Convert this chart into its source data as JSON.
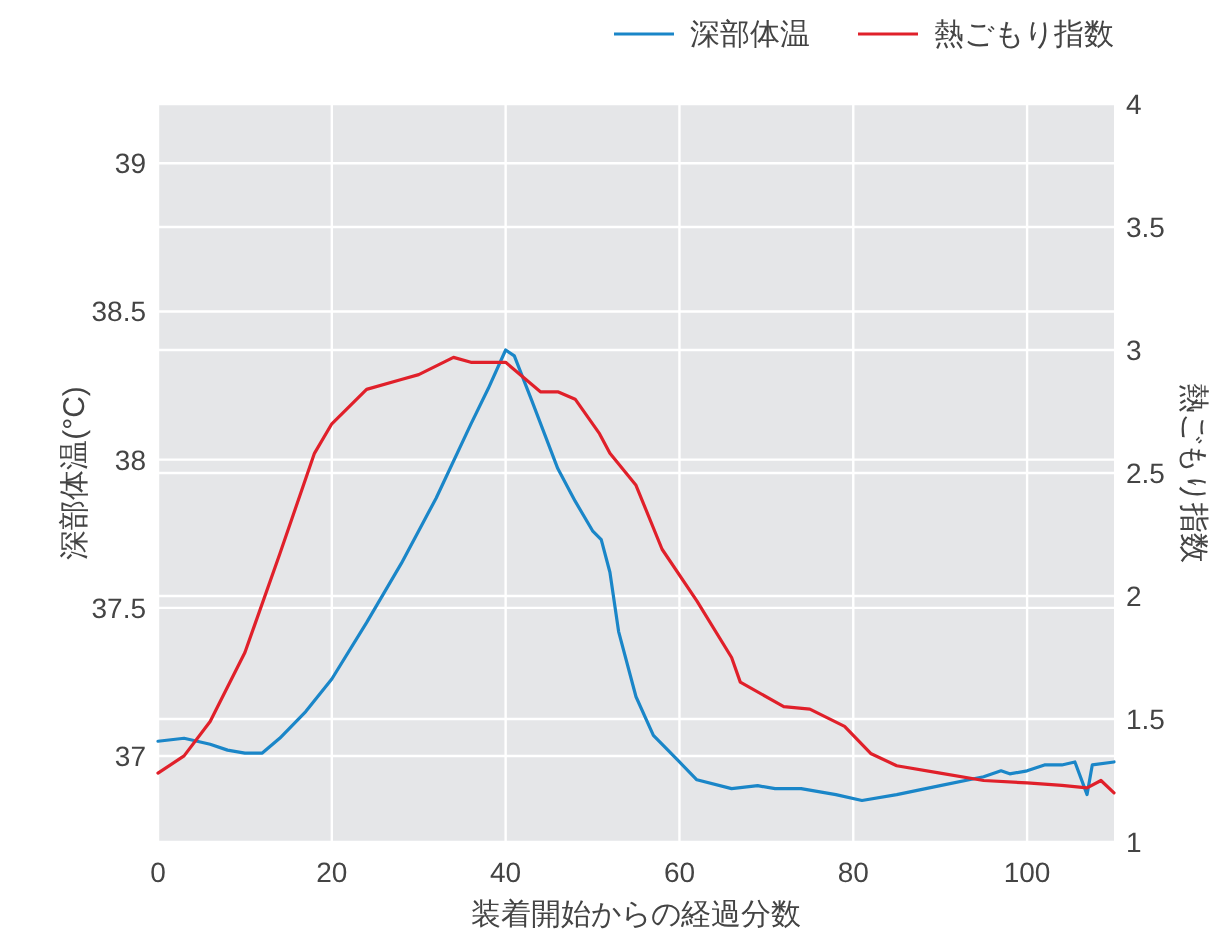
{
  "chart_data": {
    "type": "line",
    "xlabel": "装着開始からの経過分数",
    "ylabel": "深部体温(°C)",
    "y2label": "熱ごもり指数",
    "xlim": [
      0,
      110
    ],
    "xticks": [
      0,
      20,
      40,
      60,
      80,
      100
    ],
    "ylim": [
      36.71,
      39.2
    ],
    "yticks": [
      37,
      37.5,
      38,
      38.5,
      39
    ],
    "y2lim": [
      1,
      4
    ],
    "y2ticks": [
      1,
      1.5,
      2,
      2.5,
      3,
      3.5,
      4
    ],
    "grid": true,
    "legend": "top right",
    "marker": "none",
    "line_style": "solid",
    "series": [
      {
        "name": "深部体温",
        "color": "#1a86c8",
        "x": [
          0,
          3,
          6,
          8,
          10,
          12,
          14,
          17,
          20,
          24,
          28,
          32,
          36,
          38,
          40,
          41,
          43,
          46,
          48,
          50,
          51,
          52,
          53,
          55,
          57,
          60,
          62,
          66,
          69,
          71,
          74,
          78,
          81,
          85,
          90,
          95,
          97,
          98,
          100,
          102,
          104,
          105.5,
          106.9,
          107.5,
          110
        ],
        "values": [
          37.05,
          37.06,
          37.04,
          37.02,
          37.01,
          37.01,
          37.06,
          37.15,
          37.26,
          37.45,
          37.65,
          37.87,
          38.12,
          38.24,
          38.37,
          38.35,
          38.2,
          37.97,
          37.86,
          37.76,
          37.73,
          37.62,
          37.42,
          37.2,
          37.07,
          36.98,
          36.92,
          36.89,
          36.9,
          36.89,
          36.89,
          36.87,
          36.85,
          36.87,
          36.9,
          36.93,
          36.95,
          36.94,
          36.95,
          36.97,
          36.97,
          36.98,
          36.87,
          36.97,
          36.98
        ]
      },
      {
        "name": "熱ごもり指数",
        "color": "#e0202a",
        "axis": "y2",
        "x": [
          0,
          3,
          6,
          10,
          14,
          18,
          20,
          24,
          28,
          30,
          34,
          36,
          40,
          44,
          46,
          48,
          50.8,
          52,
          55,
          58,
          62,
          66,
          67,
          72,
          75,
          79,
          82,
          85,
          90,
          95,
          100,
          104,
          106.9,
          108.5,
          110
        ],
        "values": [
          1.28,
          1.35,
          1.49,
          1.77,
          2.17,
          2.58,
          2.7,
          2.84,
          2.88,
          2.9,
          2.97,
          2.95,
          2.95,
          2.83,
          2.83,
          2.8,
          2.66,
          2.58,
          2.45,
          2.19,
          1.98,
          1.75,
          1.65,
          1.55,
          1.54,
          1.47,
          1.36,
          1.31,
          1.28,
          1.25,
          1.24,
          1.23,
          1.22,
          1.25,
          1.2
        ]
      }
    ]
  }
}
